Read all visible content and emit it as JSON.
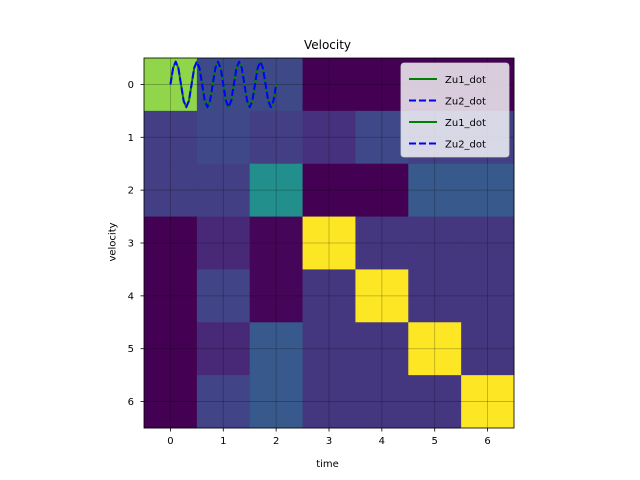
{
  "chart_data": {
    "type": "heatmap",
    "title": "Velocity",
    "xlabel": "time",
    "ylabel": "velocity",
    "x_ticks": [
      "0",
      "1",
      "2",
      "3",
      "4",
      "5",
      "6"
    ],
    "y_ticks": [
      "0",
      "1",
      "2",
      "3",
      "4",
      "5",
      "6"
    ],
    "grid": true,
    "colormap": "viridis",
    "color_range": [
      0,
      1
    ],
    "cells": [
      [
        0.9,
        0.28,
        0.28,
        0.0,
        0.0,
        0.0,
        0.0
      ],
      [
        0.23,
        0.27,
        0.23,
        0.18,
        0.27,
        0.23,
        0.23
      ],
      [
        0.23,
        0.23,
        0.62,
        0.0,
        0.0,
        0.35,
        0.35
      ],
      [
        0.0,
        0.15,
        0.02,
        1.0,
        0.2,
        0.2,
        0.2
      ],
      [
        0.0,
        0.25,
        0.02,
        0.2,
        1.0,
        0.2,
        0.2
      ],
      [
        0.0,
        0.15,
        0.35,
        0.2,
        0.2,
        1.0,
        0.2
      ],
      [
        0.0,
        0.25,
        0.35,
        0.2,
        0.2,
        0.2,
        1.0
      ]
    ],
    "overlay_lines": {
      "x": [
        0.0,
        0.05,
        0.1,
        0.15,
        0.2,
        0.25,
        0.3,
        0.35,
        0.4,
        0.45,
        0.5,
        0.55,
        0.6,
        0.65,
        0.7,
        0.75,
        0.8,
        0.85,
        0.9,
        0.95,
        1.0,
        1.05,
        1.1,
        1.15,
        1.2,
        1.25,
        1.3,
        1.35,
        1.4,
        1.45,
        1.5,
        1.55,
        1.6,
        1.65,
        1.7,
        1.75,
        1.8,
        1.85,
        1.9,
        1.95,
        2.0
      ],
      "series": [
        {
          "name": "Zu1_dot",
          "color": "#008000",
          "style": "solid",
          "values": [
            0.0,
            -0.31,
            -0.43,
            -0.31,
            0.0,
            0.31,
            0.43,
            0.31,
            0.0,
            -0.31,
            -0.43,
            -0.31,
            0.0,
            0.31,
            0.43,
            0.31,
            0.0,
            -0.31,
            -0.43,
            -0.31,
            0.0,
            0.31,
            0.43,
            0.31,
            0.0,
            -0.31,
            -0.43,
            -0.31,
            0.0,
            0.31,
            0.43,
            0.31,
            0.0,
            -0.31,
            -0.43,
            -0.31,
            0.0,
            0.31,
            0.43,
            0.31,
            0.0
          ]
        },
        {
          "name": "Zu2_dot",
          "color": "#0000ff",
          "style": "dashed",
          "values": [
            0.0,
            -0.31,
            -0.43,
            -0.31,
            0.0,
            0.31,
            0.43,
            0.31,
            0.0,
            -0.31,
            -0.43,
            -0.31,
            0.0,
            0.31,
            0.43,
            0.31,
            0.0,
            -0.31,
            -0.43,
            -0.31,
            0.0,
            0.31,
            0.43,
            0.31,
            0.0,
            -0.31,
            -0.43,
            -0.31,
            0.0,
            0.31,
            0.43,
            0.31,
            0.0,
            -0.31,
            -0.43,
            -0.31,
            0.0,
            0.31,
            0.43,
            0.31,
            0.0
          ]
        }
      ]
    },
    "legend": {
      "position": "top-right",
      "entries": [
        {
          "label": "Zu1_dot",
          "color": "#008000",
          "style": "solid"
        },
        {
          "label": "Zu2_dot",
          "color": "#0000ff",
          "style": "dashed"
        },
        {
          "label": "Zu1_dot",
          "color": "#008000",
          "style": "solid"
        },
        {
          "label": "Zu2_dot",
          "color": "#0000ff",
          "style": "dashed"
        }
      ]
    }
  }
}
